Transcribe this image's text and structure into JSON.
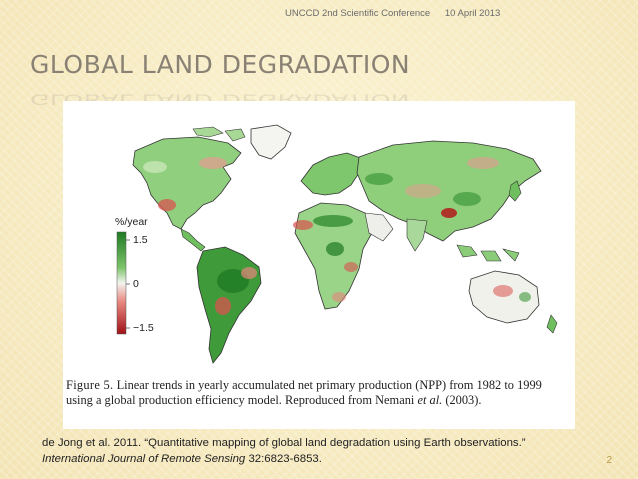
{
  "header": {
    "conference": "UNCCD 2nd Scientific Conference",
    "date": "10 April 2013"
  },
  "title": "GLOBAL LAND DEGRADATION",
  "figure": {
    "legend": {
      "unit": "%/year",
      "max_label": "1.5",
      "mid_label": "0",
      "min_label": "−1.5",
      "colors": {
        "positive": "#2e8a2e",
        "zero": "#f4f4f0",
        "negative": "#b3191b"
      }
    },
    "caption_label": "Figure 5.",
    "caption_text_1": "Linear trends in yearly accumulated net primary production (NPP) from 1982 to 1999 using a global production efficiency model. Reproduced from Nemani",
    "caption_etal": "et al.",
    "caption_text_2": "(2003)."
  },
  "credit": {
    "text_1": "de Jong et al. 2011. “Quantitative mapping of global land degradation using Earth observations.”",
    "journal": "International Journal of Remote Sensing",
    "text_2": "32:6823-6853."
  },
  "slide_number": "2"
}
